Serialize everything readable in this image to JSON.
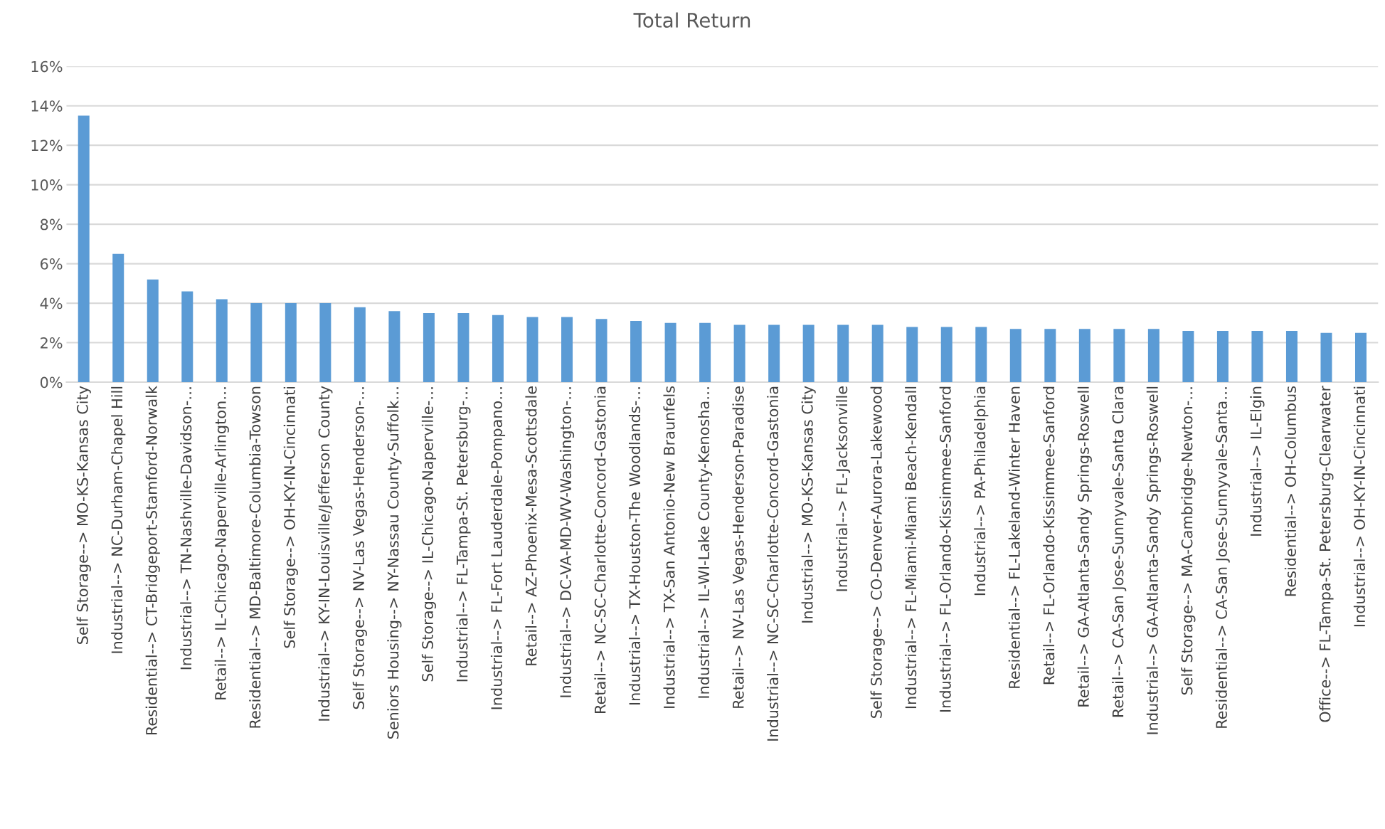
{
  "chart_data": {
    "type": "bar",
    "title": "Total Return",
    "categories": [
      "Self Storage--> MO-KS-Kansas City",
      "Industrial--> NC-Durham-Chapel Hill",
      "Residential--> CT-Bridgeport-Stamford-Norwalk",
      "Industrial--> TN-Nashville-Davidson-…",
      "Retail--> IL-Chicago-Naperville-Arlington…",
      "Residential--> MD-Baltimore-Columbia-Towson",
      "Self Storage--> OH-KY-IN-Cincinnati",
      "Industrial--> KY-IN-Louisville/Jefferson County",
      "Self Storage--> NV-Las Vegas-Henderson-…",
      "Seniors Housing--> NY-Nassau County-Suffolk…",
      "Self Storage--> IL-Chicago-Naperville-…",
      "Industrial--> FL-Tampa-St. Petersburg-…",
      "Industrial--> FL-Fort Lauderdale-Pompano…",
      "Retail--> AZ-Phoenix-Mesa-Scottsdale",
      "Industrial--> DC-VA-MD-WV-Washington-…",
      "Retail--> NC-SC-Charlotte-Concord-Gastonia",
      "Industrial--> TX-Houston-The Woodlands-…",
      "Industrial--> TX-San Antonio-New Braunfels",
      "Industrial--> IL-WI-Lake County-Kenosha…",
      "Retail--> NV-Las Vegas-Henderson-Paradise",
      "Industrial--> NC-SC-Charlotte-Concord-Gastonia",
      "Industrial--> MO-KS-Kansas City",
      "Industrial--> FL-Jacksonville",
      "Self Storage--> CO-Denver-Aurora-Lakewood",
      "Industrial--> FL-Miami-Miami Beach-Kendall",
      "Industrial--> FL-Orlando-Kissimmee-Sanford",
      "Industrial--> PA-Philadelphia",
      "Residential--> FL-Lakeland-Winter Haven",
      "Retail--> FL-Orlando-Kissimmee-Sanford",
      "Retail--> GA-Atlanta-Sandy Springs-Roswell",
      "Retail--> CA-San Jose-Sunnyvale-Santa Clara",
      "Industrial--> GA-Atlanta-Sandy Springs-Roswell",
      "Self Storage--> MA-Cambridge-Newton-…",
      "Residential--> CA-San Jose-Sunnyvale-Santa…",
      "Industrial--> IL-Elgin",
      "Residential--> OH-Columbus",
      "Office--> FL-Tampa-St. Petersburg-Clearwater",
      "Industrial--> OH-KY-IN-Cincinnati"
    ],
    "values": [
      13.5,
      6.5,
      5.2,
      4.6,
      4.2,
      4.0,
      4.0,
      4.0,
      3.8,
      3.6,
      3.5,
      3.5,
      3.4,
      3.3,
      3.3,
      3.2,
      3.1,
      3.0,
      3.0,
      2.9,
      2.9,
      2.9,
      2.9,
      2.9,
      2.8,
      2.8,
      2.8,
      2.7,
      2.7,
      2.7,
      2.7,
      2.7,
      2.6,
      2.6,
      2.6,
      2.6,
      2.5,
      2.5
    ],
    "color": "#5b9bd5",
    "ylim": [
      0,
      16
    ],
    "yticks": [
      {
        "value": 0,
        "label": "0%"
      },
      {
        "value": 2,
        "label": "2%"
      },
      {
        "value": 4,
        "label": "4%"
      },
      {
        "value": 6,
        "label": "6%"
      },
      {
        "value": 8,
        "label": "8%"
      },
      {
        "value": 10,
        "label": "10%"
      },
      {
        "value": 12,
        "label": "12%"
      },
      {
        "value": 14,
        "label": "14%"
      },
      {
        "value": 16,
        "label": "16%"
      }
    ],
    "grid": "y",
    "legend": false
  }
}
